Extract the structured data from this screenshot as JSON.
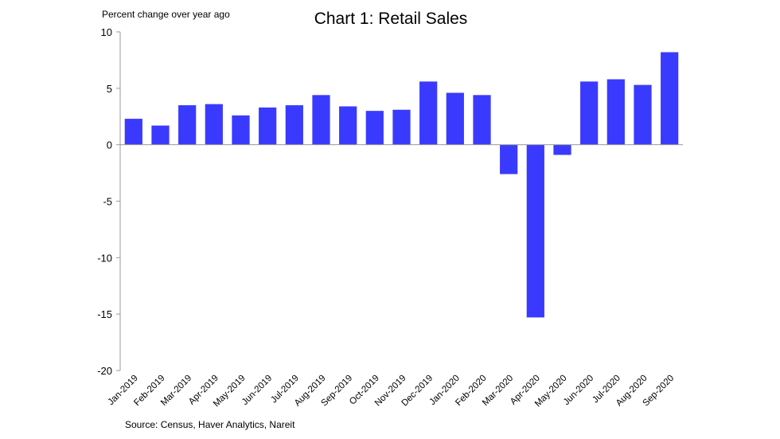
{
  "chart_data": {
    "type": "bar",
    "title": "Chart 1: Retail Sales",
    "ylabel": "Percent change over year ago",
    "xlabel": "",
    "source": "Source: Census, Haver Analytics, Nareit",
    "ylim": [
      -20,
      10
    ],
    "yticks": [
      10,
      5,
      0,
      -5,
      -10,
      -15,
      -20
    ],
    "ytick_labels": [
      "10",
      "5",
      "0",
      "-5",
      "-10",
      "-15",
      "-20"
    ],
    "grid": false,
    "bar_color": "#3a3aff",
    "categories": [
      "Jan-2019",
      "Feb-2019",
      "Mar-2019",
      "Apr-2019",
      "May-2019",
      "Jun-2019",
      "Jul-2019",
      "Aug-2019",
      "Sep-2019",
      "Oct-2019",
      "Nov-2019",
      "Dec-2019",
      "Jan-2020",
      "Feb-2020",
      "Mar-2020",
      "Apr-2020",
      "May-2020",
      "Jun-2020",
      "Jul-2020",
      "Aug-2020",
      "Sep-2020"
    ],
    "values": [
      2.3,
      1.7,
      3.5,
      3.6,
      2.6,
      3.3,
      3.5,
      4.4,
      3.4,
      3.0,
      3.1,
      5.6,
      4.6,
      4.4,
      -2.6,
      -15.3,
      -0.9,
      5.6,
      5.8,
      5.3,
      8.2
    ]
  }
}
